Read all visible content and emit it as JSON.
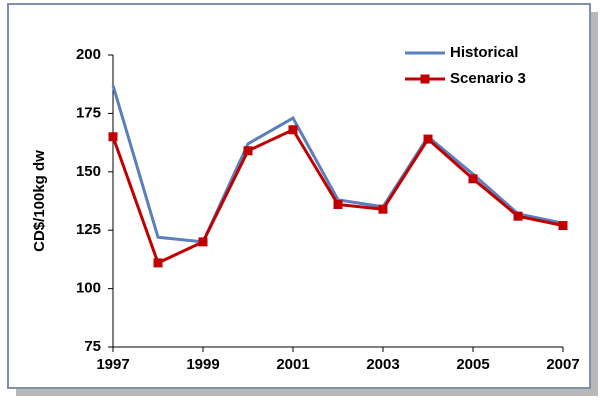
{
  "chart_data": {
    "type": "line",
    "ylabel": "CD$/100kg dw",
    "x": [
      1997,
      1998,
      1999,
      2000,
      2001,
      2002,
      2003,
      2004,
      2005,
      2006,
      2007
    ],
    "series": [
      {
        "name": "Historical",
        "color": "#5b7fbd",
        "marker": "none",
        "values": [
          187,
          122,
          120,
          162,
          173,
          138,
          135,
          165,
          149,
          132,
          128
        ]
      },
      {
        "name": "Scenario 3",
        "color": "#c00000",
        "marker": "square",
        "values": [
          165,
          111,
          120,
          159,
          168,
          136,
          134,
          164,
          147,
          131,
          127
        ]
      }
    ],
    "xlim": [
      1997,
      2007
    ],
    "xticks": [
      1997,
      1999,
      2001,
      2003,
      2005,
      2007
    ],
    "ylim": [
      75,
      200
    ],
    "yticks": [
      75,
      100,
      125,
      150,
      175,
      200
    ],
    "grid": false,
    "legend": "upper right"
  }
}
